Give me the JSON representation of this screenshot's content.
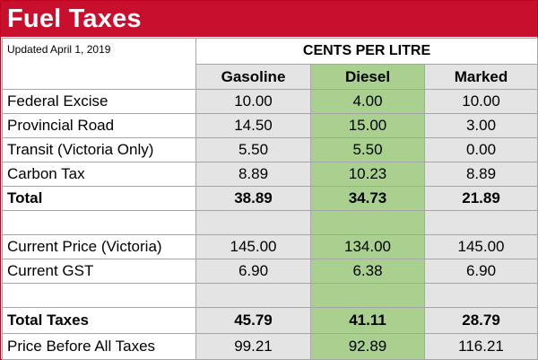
{
  "header": {
    "title": "Fuel Taxes",
    "updated": "Updated April 1, 2019",
    "unit_label": "CENTS PER LITRE"
  },
  "columns": [
    "Gasoline",
    "Diesel",
    "Marked"
  ],
  "rows": [
    {
      "label": "Federal Excise",
      "values": [
        "10.00",
        "4.00",
        "10.00"
      ]
    },
    {
      "label": "Provincial Road",
      "values": [
        "14.50",
        "15.00",
        "3.00"
      ]
    },
    {
      "label": "Transit (Victoria Only)",
      "values": [
        "5.50",
        "5.50",
        "0.00"
      ]
    },
    {
      "label": "Carbon Tax",
      "values": [
        "8.89",
        "10.23",
        "8.89"
      ]
    },
    {
      "label": "Total",
      "values": [
        "38.89",
        "34.73",
        "21.89"
      ],
      "bold": true
    },
    {
      "label": "",
      "values": [
        "",
        "",
        ""
      ],
      "spacer": true
    },
    {
      "label": "Current Price (Victoria)",
      "values": [
        "145.00",
        "134.00",
        "145.00"
      ]
    },
    {
      "label": "Current GST",
      "values": [
        "6.90",
        "6.38",
        "6.90"
      ]
    },
    {
      "label": "",
      "values": [
        "",
        "",
        ""
      ],
      "spacer": true
    },
    {
      "label": "Total Taxes",
      "values": [
        "45.79",
        "41.11",
        "28.79"
      ],
      "bold": true
    },
    {
      "label": "Price Before All Taxes",
      "values": [
        "99.21",
        "92.89",
        "116.21"
      ]
    }
  ],
  "colors": {
    "banner": "#c8102e",
    "diesel_column": "#a9d08e",
    "other_columns": "#e4e4e4",
    "grid_lines": "#a6a6a6"
  }
}
